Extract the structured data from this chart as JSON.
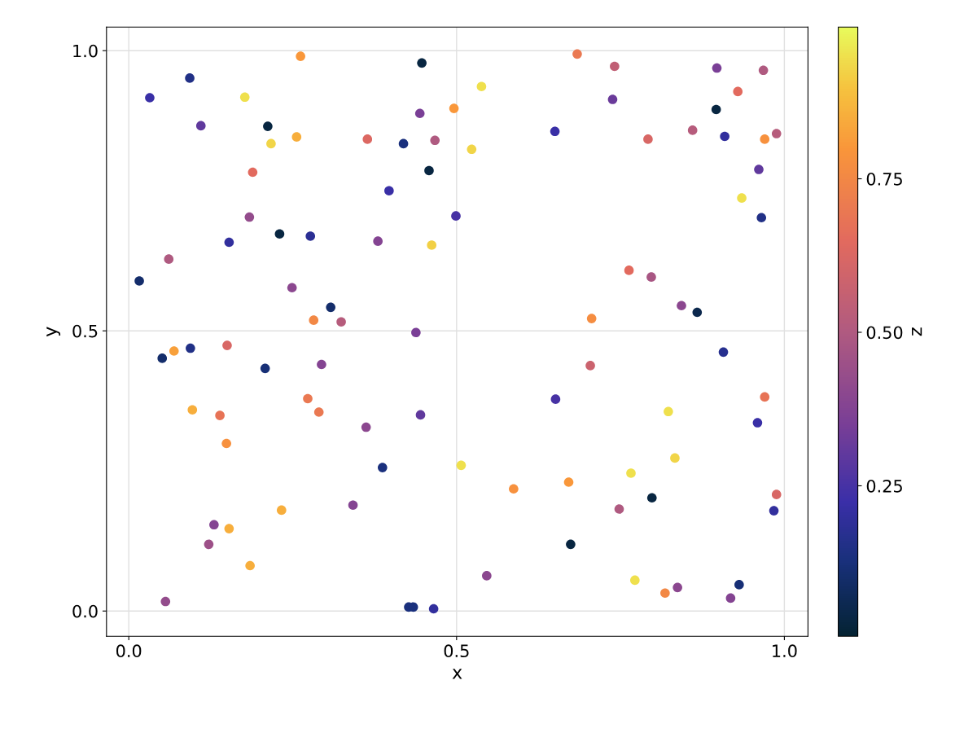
{
  "chart_data": {
    "type": "scatter",
    "xlabel": "x",
    "ylabel": "y",
    "clabel": "z",
    "x": [
      0.016,
      0.032,
      0.093,
      0.11,
      0.177,
      0.212,
      0.262,
      0.217,
      0.256,
      0.189,
      0.184,
      0.153,
      0.061,
      0.23,
      0.277,
      0.249,
      0.308,
      0.282,
      0.324,
      0.051,
      0.069,
      0.094,
      0.15,
      0.208,
      0.294,
      0.097,
      0.139,
      0.273,
      0.29,
      0.149,
      0.362,
      0.13,
      0.122,
      0.153,
      0.233,
      0.185,
      0.056,
      0.342,
      0.387,
      0.364,
      0.419,
      0.444,
      0.467,
      0.458,
      0.397,
      0.38,
      0.447,
      0.496,
      0.538,
      0.523,
      0.499,
      0.462,
      0.438,
      0.445,
      0.507,
      0.546,
      0.427,
      0.434,
      0.465,
      0.587,
      0.65,
      0.684,
      0.741,
      0.738,
      0.792,
      0.896,
      0.897,
      0.929,
      0.968,
      0.86,
      0.909,
      0.988,
      0.97,
      0.961,
      0.935,
      0.965,
      0.763,
      0.797,
      0.843,
      0.867,
      0.706,
      0.704,
      0.651,
      0.907,
      0.97,
      0.823,
      0.959,
      0.833,
      0.766,
      0.671,
      0.798,
      0.748,
      0.988,
      0.984,
      0.674,
      0.772,
      0.818,
      0.837,
      0.931,
      0.918
    ],
    "values": [
      0.589,
      0.916,
      0.951,
      0.866,
      0.917,
      0.865,
      0.99,
      0.834,
      0.846,
      0.783,
      0.703,
      0.658,
      0.628,
      0.673,
      0.669,
      0.577,
      0.542,
      0.519,
      0.516,
      0.451,
      0.464,
      0.469,
      0.474,
      0.433,
      0.44,
      0.359,
      0.349,
      0.379,
      0.355,
      0.299,
      0.328,
      0.154,
      0.119,
      0.147,
      0.18,
      0.081,
      0.017,
      0.189,
      0.256,
      0.842,
      0.834,
      0.888,
      0.84,
      0.786,
      0.75,
      0.66,
      0.978,
      0.897,
      0.936,
      0.824,
      0.705,
      0.653,
      0.497,
      0.35,
      0.26,
      0.063,
      0.007,
      0.007,
      0.004,
      0.218,
      0.856,
      0.994,
      0.972,
      0.913,
      0.842,
      0.895,
      0.969,
      0.927,
      0.965,
      0.858,
      0.847,
      0.852,
      0.842,
      0.788,
      0.737,
      0.702,
      0.608,
      0.596,
      0.545,
      0.533,
      0.522,
      0.438,
      0.378,
      0.462,
      0.382,
      0.356,
      0.336,
      0.273,
      0.246,
      0.23,
      0.202,
      0.182,
      0.208,
      0.179,
      0.119,
      0.055,
      0.032,
      0.042,
      0.047,
      0.023
    ],
    "cvalues": [
      0.1,
      0.22,
      0.15,
      0.3,
      0.95,
      0.03,
      0.8,
      0.93,
      0.85,
      0.65,
      0.42,
      0.2,
      0.5,
      0.03,
      0.18,
      0.4,
      0.1,
      0.75,
      0.52,
      0.1,
      0.82,
      0.15,
      0.62,
      0.12,
      0.38,
      0.85,
      0.68,
      0.7,
      0.7,
      0.78,
      0.4,
      0.38,
      0.45,
      0.85,
      0.85,
      0.85,
      0.42,
      0.38,
      0.13,
      0.63,
      0.13,
      0.35,
      0.5,
      0.03,
      0.22,
      0.38,
      0.03,
      0.8,
      0.95,
      0.93,
      0.25,
      0.92,
      0.35,
      0.3,
      0.95,
      0.4,
      0.13,
      0.13,
      0.2,
      0.78,
      0.22,
      0.7,
      0.55,
      0.32,
      0.62,
      0.03,
      0.35,
      0.65,
      0.5,
      0.52,
      0.2,
      0.52,
      0.78,
      0.3,
      0.95,
      0.15,
      0.65,
      0.48,
      0.4,
      0.05,
      0.77,
      0.58,
      0.25,
      0.17,
      0.68,
      0.95,
      0.22,
      0.93,
      0.95,
      0.8,
      0.03,
      0.5,
      0.62,
      0.2,
      0.03,
      0.95,
      0.75,
      0.4,
      0.12,
      0.38
    ],
    "xlim": [
      -0.034,
      1.036
    ],
    "ylim": [
      -0.045,
      1.042
    ],
    "xticks": [
      {
        "value": 0,
        "label": "0.0"
      },
      0.5,
      {
        "value": 1,
        "label": "1.0"
      }
    ],
    "yticks": [
      {
        "value": 0,
        "label": "0.0"
      },
      0.5,
      {
        "value": 1,
        "label": "1.0"
      }
    ],
    "clim": [
      0.005,
      0.997
    ],
    "cticks": [
      0.25,
      {
        "value": 0.5,
        "label": "0.50"
      },
      0.75
    ],
    "grid": true,
    "marker": "circle"
  }
}
